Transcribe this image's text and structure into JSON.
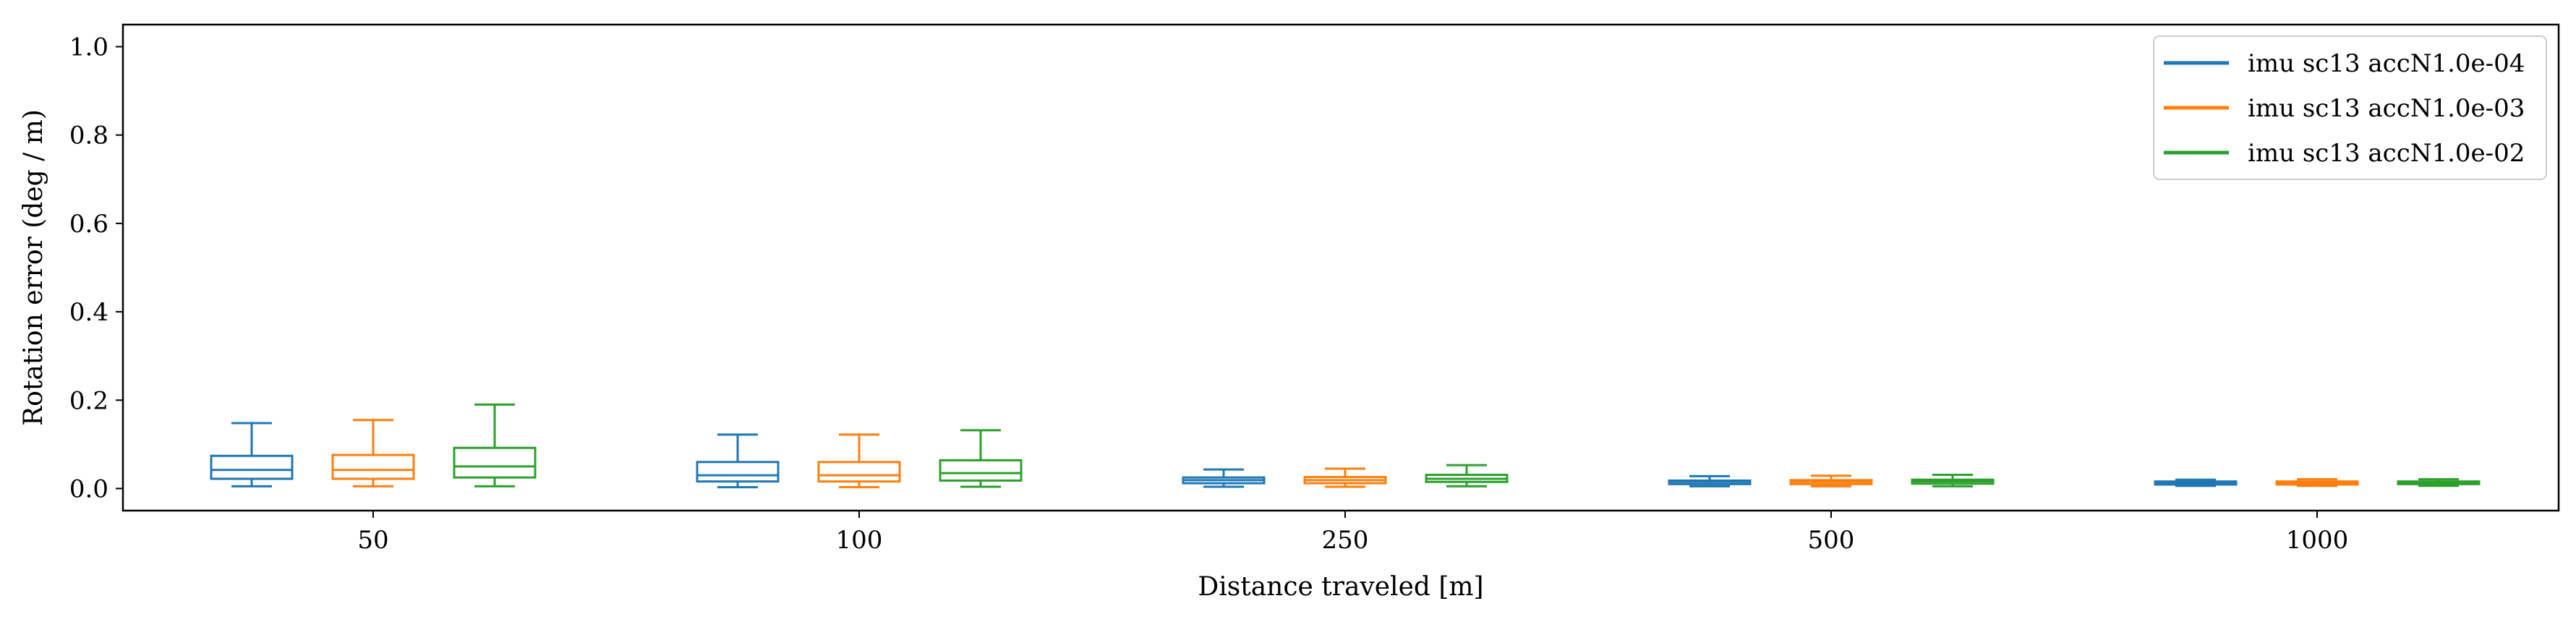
{
  "chart_data": {
    "type": "box",
    "title": "",
    "xlabel": "Distance traveled [m]",
    "ylabel": "Rotation error (deg / m)",
    "ylim": [
      -0.05,
      1.05
    ],
    "yticks": [
      "0.0",
      "0.2",
      "0.4",
      "0.6",
      "0.8",
      "1.0"
    ],
    "categories": [
      "50",
      "100",
      "250",
      "500",
      "1000"
    ],
    "grid": false,
    "legend_position": "top-right",
    "series": [
      {
        "name": "imu sc13 accN1.0e-04",
        "color": "#1f77b4",
        "boxes": [
          {
            "whislo": 0.005,
            "q1": 0.022,
            "med": 0.042,
            "q3": 0.074,
            "whishi": 0.148
          },
          {
            "whislo": 0.003,
            "q1": 0.016,
            "med": 0.03,
            "q3": 0.06,
            "whishi": 0.122
          },
          {
            "whislo": 0.004,
            "q1": 0.012,
            "med": 0.019,
            "q3": 0.025,
            "whishi": 0.043
          },
          {
            "whislo": 0.005,
            "q1": 0.01,
            "med": 0.015,
            "q3": 0.018,
            "whishi": 0.028
          },
          {
            "whislo": 0.006,
            "q1": 0.009,
            "med": 0.012,
            "q3": 0.016,
            "whishi": 0.02
          }
        ]
      },
      {
        "name": "imu sc13 accN1.0e-03",
        "color": "#ff7f0e",
        "boxes": [
          {
            "whislo": 0.005,
            "q1": 0.022,
            "med": 0.042,
            "q3": 0.076,
            "whishi": 0.155
          },
          {
            "whislo": 0.003,
            "q1": 0.016,
            "med": 0.03,
            "q3": 0.06,
            "whishi": 0.122
          },
          {
            "whislo": 0.004,
            "q1": 0.012,
            "med": 0.019,
            "q3": 0.026,
            "whishi": 0.045
          },
          {
            "whislo": 0.005,
            "q1": 0.01,
            "med": 0.015,
            "q3": 0.019,
            "whishi": 0.029
          },
          {
            "whislo": 0.006,
            "q1": 0.009,
            "med": 0.012,
            "q3": 0.016,
            "whishi": 0.021
          }
        ]
      },
      {
        "name": "imu sc13 accN1.0e-02",
        "color": "#2ca02c",
        "boxes": [
          {
            "whislo": 0.005,
            "q1": 0.025,
            "med": 0.05,
            "q3": 0.092,
            "whishi": 0.19
          },
          {
            "whislo": 0.004,
            "q1": 0.018,
            "med": 0.035,
            "q3": 0.064,
            "whishi": 0.132
          },
          {
            "whislo": 0.005,
            "q1": 0.015,
            "med": 0.022,
            "q3": 0.031,
            "whishi": 0.053
          },
          {
            "whislo": 0.005,
            "q1": 0.011,
            "med": 0.016,
            "q3": 0.02,
            "whishi": 0.031
          },
          {
            "whislo": 0.006,
            "q1": 0.01,
            "med": 0.013,
            "q3": 0.016,
            "whishi": 0.021
          }
        ]
      }
    ]
  }
}
